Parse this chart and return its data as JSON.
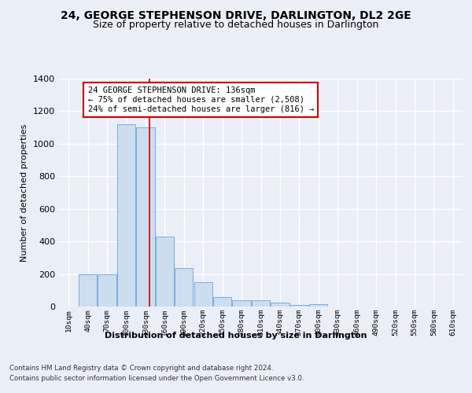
{
  "title": "24, GEORGE STEPHENSON DRIVE, DARLINGTON, DL2 2GE",
  "subtitle": "Size of property relative to detached houses in Darlington",
  "xlabel": "Distribution of detached houses by size in Darlington",
  "ylabel": "Number of detached properties",
  "footer_line1": "Contains HM Land Registry data © Crown copyright and database right 2024.",
  "footer_line2": "Contains public sector information licensed under the Open Government Licence v3.0.",
  "bar_color": "#ccddf0",
  "bar_edge_color": "#7aabe0",
  "annotation_box_text": "24 GEORGE STEPHENSON DRIVE: 136sqm\n← 75% of detached houses are smaller (2,508)\n24% of semi-detached houses are larger (816) →",
  "annotation_box_color": "#ffffff",
  "annotation_box_edge_color": "#cc0000",
  "vline_x_bin": 4,
  "vline_color": "#cc0000",
  "bin_labels": [
    "10sqm",
    "40sqm",
    "70sqm",
    "100sqm",
    "130sqm",
    "160sqm",
    "190sqm",
    "220sqm",
    "250sqm",
    "280sqm",
    "310sqm",
    "340sqm",
    "370sqm",
    "400sqm",
    "430sqm",
    "460sqm",
    "490sqm",
    "520sqm",
    "550sqm",
    "580sqm",
    "610sqm"
  ],
  "values": [
    0,
    200,
    200,
    1120,
    1100,
    430,
    235,
    148,
    57,
    40,
    38,
    25,
    12,
    15,
    0,
    0,
    0,
    0,
    0,
    0,
    0
  ],
  "ylim": [
    0,
    1400
  ],
  "yticks": [
    0,
    200,
    400,
    600,
    800,
    1000,
    1200,
    1400
  ],
  "background_color": "#eaeff7",
  "plot_background": "#eaeff7",
  "grid_color": "#ffffff",
  "title_fontsize": 10,
  "subtitle_fontsize": 9,
  "annotation_fontsize": 7.5
}
